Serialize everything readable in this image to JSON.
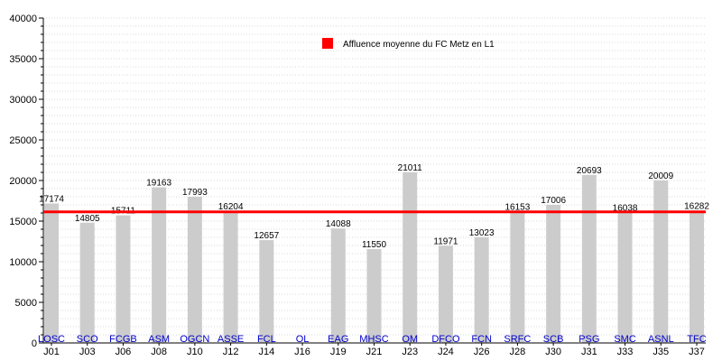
{
  "chart_data": {
    "type": "bar",
    "categories": [
      "J01",
      "J03",
      "J06",
      "J08",
      "J10",
      "J12",
      "J14",
      "J16",
      "J19",
      "J21",
      "J23",
      "J24",
      "J26",
      "J28",
      "J30",
      "J31",
      "J33",
      "J35",
      "J37"
    ],
    "teams": [
      "LOSC",
      "SCO",
      "FCGB",
      "ASM",
      "OGCN",
      "ASSE",
      "FCL",
      "OL",
      "EAG",
      "MHSC",
      "OM",
      "DFCO",
      "FCN",
      "SRFC",
      "SCB",
      "PSG",
      "SMC",
      "ASNL",
      "TFC"
    ],
    "values": [
      17174,
      14805,
      15711,
      19163,
      17993,
      16204,
      12657,
      null,
      14088,
      11550,
      21011,
      11971,
      13023,
      16153,
      17006,
      20693,
      16038,
      20009,
      16282
    ],
    "value_labels": [
      "17174",
      "14805",
      "15711",
      "19163",
      "17993",
      "16204",
      "12657",
      "",
      "14088",
      "11550",
      "21011",
      "11971",
      "13023",
      "16153",
      "17006",
      "20693",
      "16038",
      "20009",
      "16282"
    ],
    "average_line": {
      "label": "Affluence moyenne du FC Metz en L1",
      "value": 16140
    },
    "ylim": [
      0,
      40000
    ],
    "yticks": [
      "0",
      "5000",
      "10000",
      "15000",
      "20000",
      "25000",
      "30000",
      "35000",
      "40000"
    ],
    "ytick_values": [
      0,
      5000,
      10000,
      15000,
      20000,
      25000,
      30000,
      35000,
      40000
    ],
    "grid": true,
    "legend_position": "top-center",
    "colors": {
      "bar": "#cccccc",
      "average": "#ff0000",
      "team_label": "#0000cc",
      "grid": "#d9d9d9"
    }
  }
}
